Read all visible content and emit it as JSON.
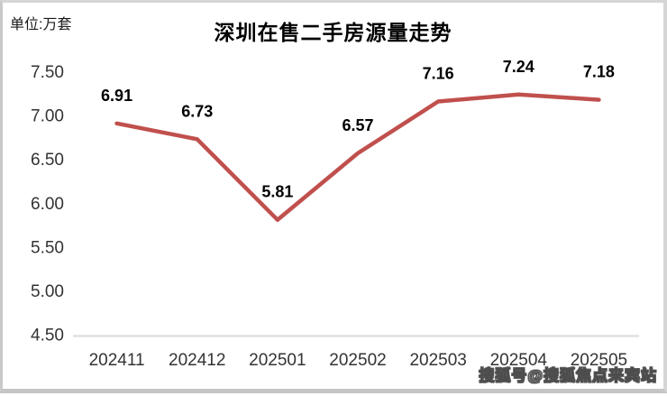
{
  "chart_data": {
    "type": "line",
    "title": "深圳在售二手房源量走势",
    "unit_label": "单位:万套",
    "categories": [
      "202411",
      "202412",
      "202501",
      "202502",
      "202503",
      "202504",
      "202505"
    ],
    "values": [
      6.91,
      6.73,
      5.81,
      6.57,
      7.16,
      7.24,
      7.18
    ],
    "data_labels": [
      "6.91",
      "6.73",
      "5.81",
      "6.57",
      "7.16",
      "7.24",
      "7.18"
    ],
    "ylim": [
      4.5,
      7.5
    ],
    "ytick_step": 0.5,
    "ytick_labels": [
      "7.50",
      "7.00",
      "6.50",
      "6.00",
      "5.50",
      "5.00",
      "4.50"
    ],
    "grid": false,
    "legend": false,
    "line_color": "#c0504d",
    "axis_line_color": "#d9d9d9",
    "tick_label_color": "#333333",
    "data_label_color": "#000000",
    "title_color": "#000000"
  },
  "watermark": {
    "text": "搜狐号@搜狐焦点来宾站"
  }
}
